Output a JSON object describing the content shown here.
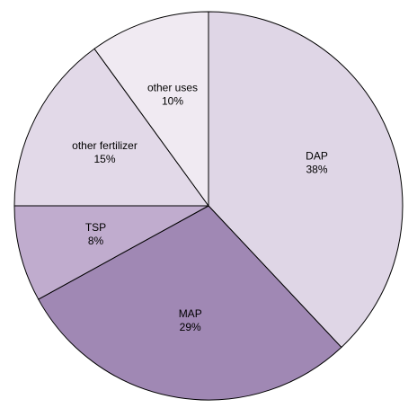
{
  "chart_data": {
    "type": "pie",
    "title": "",
    "slices": [
      {
        "label": "DAP",
        "value": 38,
        "value_label": "38%",
        "color": "#dfd6e6"
      },
      {
        "label": "MAP",
        "value": 29,
        "value_label": "29%",
        "color": "#a088b4"
      },
      {
        "label": "TSP",
        "value": 8,
        "value_label": "8%",
        "color": "#c0acce"
      },
      {
        "label": "other fertilizer",
        "value": 15,
        "value_label": "15%",
        "color": "#e2d9e8"
      },
      {
        "label": "other uses",
        "value": 10,
        "value_label": "10%",
        "color": "#f0eaf2"
      }
    ],
    "start_angle_deg": 0,
    "direction": "clockwise",
    "legend": "none"
  }
}
